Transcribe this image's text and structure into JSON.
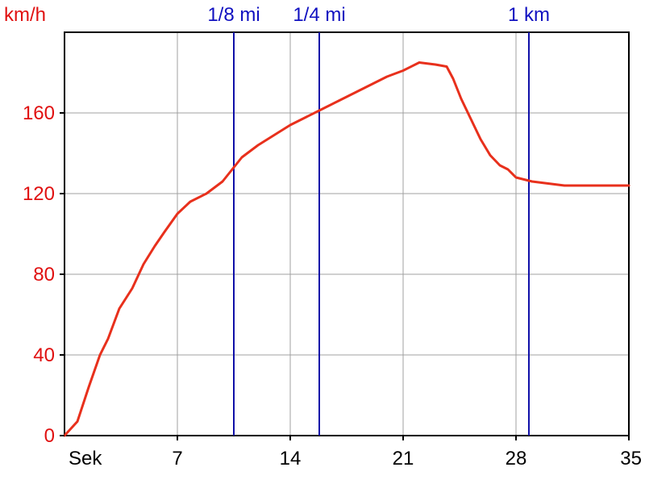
{
  "chart_data": {
    "type": "line",
    "ylabel": "km/h",
    "xlabel": "Sek",
    "xlim": [
      0,
      35
    ],
    "ylim": [
      0,
      200
    ],
    "x_ticks": [
      7,
      14,
      21,
      28,
      35
    ],
    "y_ticks": [
      0,
      40,
      80,
      120,
      160
    ],
    "grid": true,
    "series": [
      {
        "color": "#e8301c",
        "x": [
          0,
          0.8,
          1.5,
          2.2,
          2.7,
          3.4,
          4.2,
          4.9,
          5.6,
          6.2,
          7.0,
          7.8,
          8.8,
          9.8,
          10.5,
          11.0,
          12.0,
          13.0,
          14.0,
          15.0,
          16.0,
          17.0,
          18.0,
          19.0,
          20.0,
          21.0,
          22.0,
          23.0,
          23.7,
          24.1,
          24.6,
          25.2,
          25.8,
          26.4,
          27.0,
          27.5,
          28.0,
          29.0,
          30.0,
          31.0,
          32.0,
          33.0,
          34.0,
          34.5,
          35.0
        ],
        "y": [
          0,
          7,
          24,
          40,
          48,
          63,
          73,
          85,
          94,
          101,
          110,
          116,
          120,
          126,
          133,
          138,
          144,
          149,
          154,
          158,
          162,
          166,
          170,
          174,
          178,
          181,
          185,
          184,
          183,
          177,
          167,
          157,
          147,
          139,
          134,
          132,
          128,
          126,
          125,
          124,
          124,
          124,
          124,
          124,
          124
        ]
      }
    ],
    "markers": [
      {
        "label": "1/8 mi",
        "x": 10.5
      },
      {
        "label": "1/4 mi",
        "x": 15.8
      },
      {
        "label": "1 km",
        "x": 28.8
      }
    ]
  }
}
